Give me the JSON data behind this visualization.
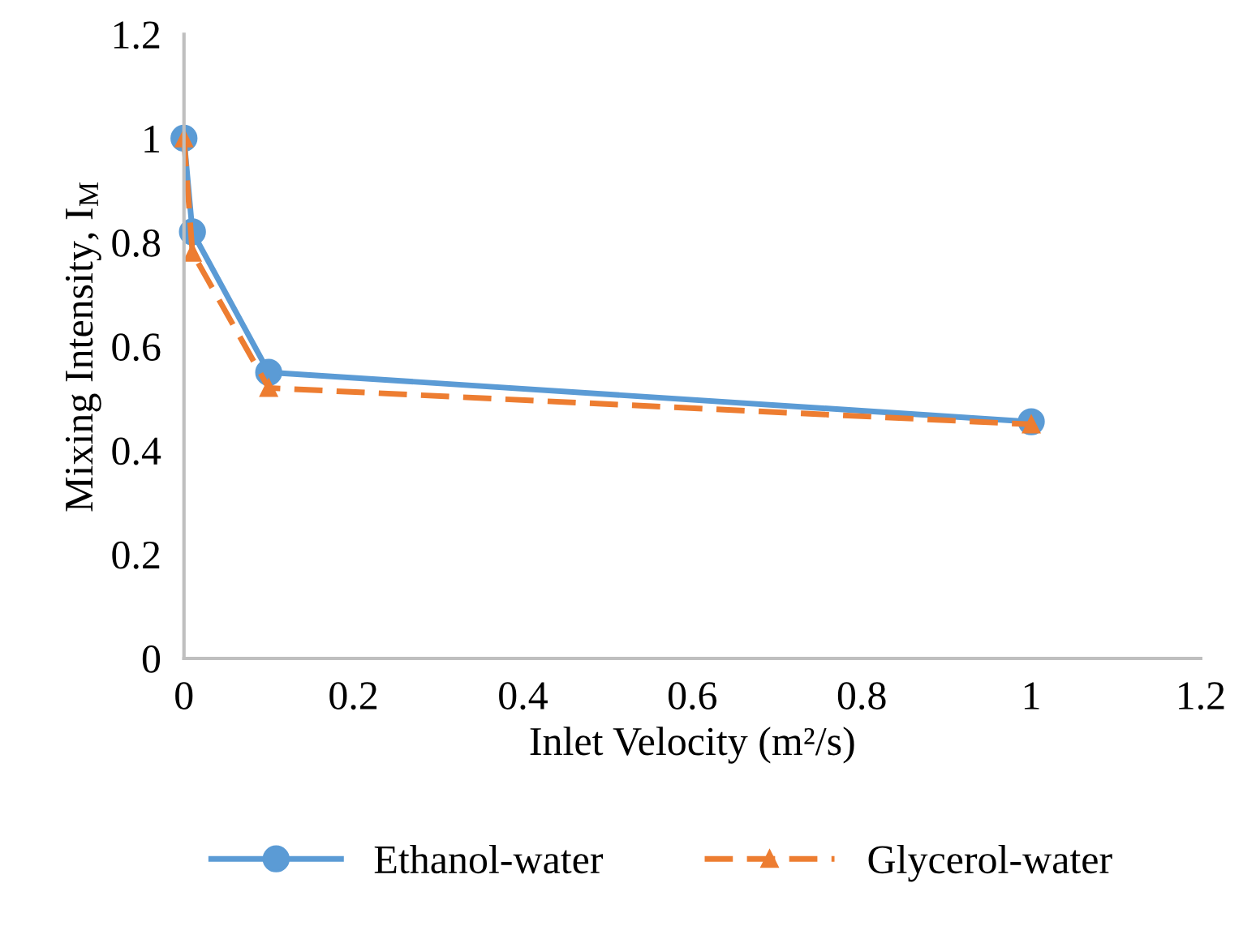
{
  "chart_data": {
    "type": "line",
    "xlabel": "Inlet Velocity (m²/s)",
    "ylabel": "Mixing Intensity, I$_{M}$",
    "x": [
      0,
      0.01,
      0.1,
      1
    ],
    "series": [
      {
        "name": "Ethanol-water",
        "color": "#5b9bd5",
        "values": [
          1,
          0.82,
          0.55,
          0.455
        ],
        "marker": "circle",
        "line_style": "solid"
      },
      {
        "name": "Glycerol-water",
        "color": "#ed7d31",
        "values": [
          1,
          0.78,
          0.52,
          0.45
        ],
        "marker": "triangle",
        "line_style": "dashed"
      }
    ],
    "xlim": [
      0,
      1.2
    ],
    "xticks": [
      0,
      0.2,
      0.4,
      0.6,
      0.8,
      1,
      1.2
    ],
    "ylim": [
      0,
      1.2
    ],
    "yticks": [
      0,
      0.2,
      0.4,
      0.6,
      0.8,
      1,
      1.2
    ],
    "grid": false,
    "legend": "bottom"
  }
}
